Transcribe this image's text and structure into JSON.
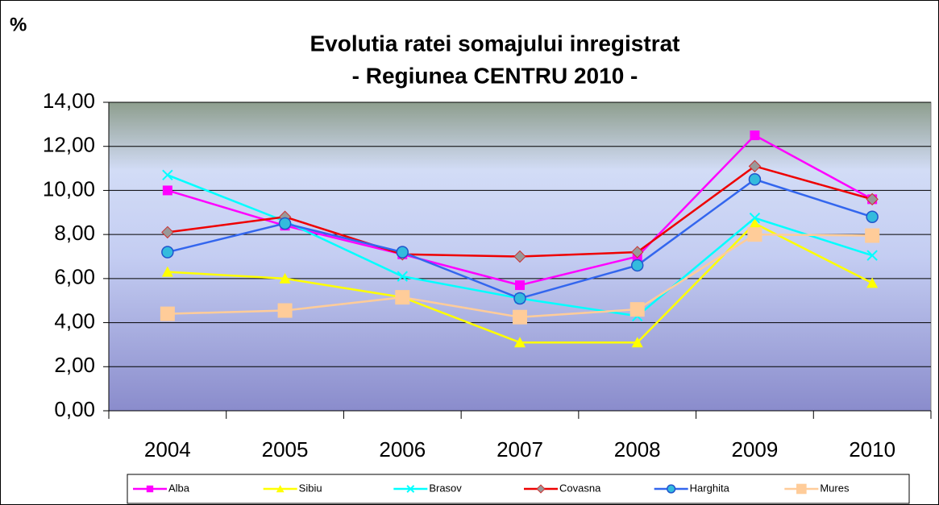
{
  "chart_data": {
    "type": "line",
    "title": "Evolutia ratei somajului inregistrat",
    "subtitle": "- Regiunea CENTRU 2010 -",
    "y_label": "%",
    "categories": [
      "2004",
      "2005",
      "2006",
      "2007",
      "2008",
      "2009",
      "2010"
    ],
    "ylim": [
      0,
      14
    ],
    "yticks": [
      {
        "value": 0,
        "label": "0,00"
      },
      {
        "value": 2,
        "label": "2,00"
      },
      {
        "value": 4,
        "label": "4,00"
      },
      {
        "value": 6,
        "label": "6,00"
      },
      {
        "value": 8,
        "label": "8,00"
      },
      {
        "value": 10,
        "label": "10,00"
      },
      {
        "value": 12,
        "label": "12,00"
      },
      {
        "value": 14,
        "label": "14,00"
      }
    ],
    "grid": true,
    "legend": "bottom",
    "series": [
      {
        "name": "Alba",
        "color": "#ff00ff",
        "marker": "square",
        "values": [
          10.0,
          8.4,
          7.1,
          5.7,
          7.0,
          12.5,
          9.6
        ]
      },
      {
        "name": "Sibiu",
        "color": "#ffff00",
        "marker": "triangle",
        "values": [
          6.3,
          6.0,
          5.15,
          3.1,
          3.1,
          8.5,
          5.8
        ]
      },
      {
        "name": "Brasov",
        "color": "#00ffff",
        "marker": "x",
        "values": [
          10.7,
          8.6,
          6.1,
          5.1,
          4.3,
          8.75,
          7.05
        ]
      },
      {
        "name": "Covasna",
        "color": "#ee0000",
        "marker": "diamond",
        "values": [
          8.1,
          8.8,
          7.1,
          7.0,
          7.2,
          11.1,
          9.6
        ]
      },
      {
        "name": "Harghita",
        "color": "#3366ee",
        "marker": "circle",
        "values": [
          7.2,
          8.5,
          7.2,
          5.1,
          6.6,
          10.5,
          8.8
        ]
      },
      {
        "name": "Mures",
        "color": "#ffcc99",
        "marker": "bigsquare",
        "values": [
          4.4,
          4.55,
          5.15,
          4.25,
          4.6,
          8.0,
          7.95
        ]
      }
    ]
  }
}
